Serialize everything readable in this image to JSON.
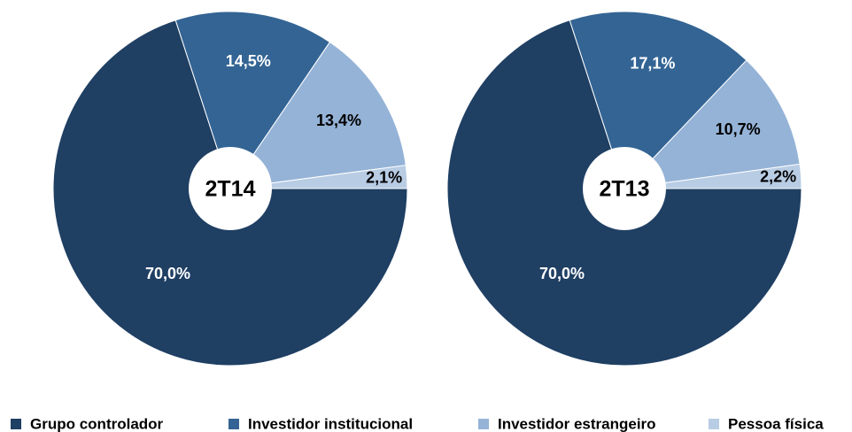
{
  "legend": [
    "Grupo controlador",
    "Investidor institucional",
    "Investidor estrangeiro",
    "Pessoa física"
  ],
  "colors": [
    "#1f3f63",
    "#336494",
    "#95b3d7",
    "#b8cce4"
  ],
  "chart_data": [
    {
      "type": "pie",
      "title": "2T14",
      "values": [
        70.0,
        14.5,
        13.4,
        2.1
      ],
      "value_labels": [
        "70,0%",
        "14,5%",
        "13,4%",
        "2,1%"
      ]
    },
    {
      "type": "pie",
      "title": "2T13",
      "values": [
        70.0,
        17.1,
        10.7,
        2.2
      ],
      "value_labels": [
        "70,0%",
        "17,1%",
        "10,7%",
        "2,2%"
      ]
    }
  ]
}
